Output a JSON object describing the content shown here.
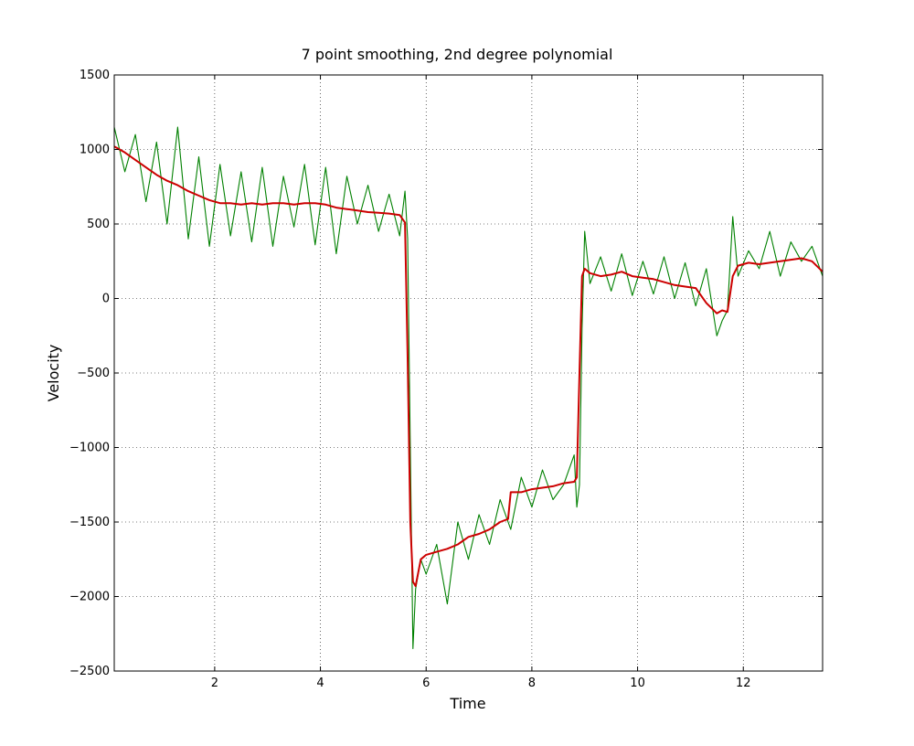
{
  "chart_data": {
    "type": "line",
    "title": "7 point smoothing, 2nd degree polynomial",
    "xlabel": "Time",
    "ylabel": "Velocity",
    "xlim": [
      0.1,
      13.5
    ],
    "ylim": [
      -2500,
      1500
    ],
    "xticks": [
      2,
      4,
      6,
      8,
      10,
      12
    ],
    "xtick_labels": [
      "2",
      "4",
      "6",
      "8",
      "10",
      "12"
    ],
    "yticks": [
      1500,
      1000,
      500,
      0,
      -500,
      -1000,
      -1500,
      -2000,
      -2500
    ],
    "ytick_labels": [
      "1500",
      "1000",
      "500",
      "0",
      "−500",
      "−1000",
      "−1500",
      "−2000",
      "−2500"
    ],
    "grid": true,
    "legend": "none",
    "series": [
      {
        "role": "raw",
        "color": "#008000",
        "x": [
          0.1,
          0.3,
          0.5,
          0.7,
          0.9,
          1.1,
          1.3,
          1.5,
          1.7,
          1.9,
          2.1,
          2.3,
          2.5,
          2.7,
          2.9,
          3.1,
          3.3,
          3.5,
          3.7,
          3.9,
          4.1,
          4.3,
          4.5,
          4.7,
          4.9,
          5.1,
          5.3,
          5.5,
          5.6,
          5.65,
          5.7,
          5.75,
          5.8,
          5.9,
          6.0,
          6.2,
          6.4,
          6.6,
          6.8,
          7.0,
          7.2,
          7.4,
          7.6,
          7.8,
          8.0,
          8.2,
          8.4,
          8.6,
          8.8,
          8.85,
          8.9,
          8.95,
          9.0,
          9.1,
          9.3,
          9.5,
          9.7,
          9.9,
          10.1,
          10.3,
          10.5,
          10.7,
          10.9,
          11.1,
          11.3,
          11.5,
          11.6,
          11.7,
          11.8,
          11.9,
          12.1,
          12.3,
          12.5,
          12.7,
          12.9,
          13.1,
          13.3,
          13.5
        ],
        "y": [
          1150,
          850,
          1100,
          650,
          1050,
          500,
          1150,
          400,
          950,
          350,
          900,
          420,
          850,
          380,
          880,
          350,
          820,
          480,
          900,
          360,
          880,
          300,
          820,
          500,
          760,
          450,
          700,
          420,
          720,
          400,
          -1000,
          -2350,
          -1950,
          -1750,
          -1850,
          -1650,
          -2050,
          -1500,
          -1750,
          -1450,
          -1650,
          -1350,
          -1550,
          -1200,
          -1400,
          -1150,
          -1350,
          -1250,
          -1050,
          -1400,
          -1250,
          -200,
          450,
          100,
          280,
          50,
          300,
          20,
          250,
          30,
          280,
          0,
          240,
          -50,
          200,
          -250,
          -150,
          -80,
          550,
          150,
          320,
          200,
          450,
          150,
          380,
          250,
          350,
          150
        ]
      },
      {
        "role": "smoothed",
        "color": "#cc0000",
        "x": [
          0.1,
          0.3,
          0.5,
          0.7,
          0.9,
          1.1,
          1.3,
          1.5,
          1.7,
          1.9,
          2.1,
          2.3,
          2.5,
          2.7,
          2.9,
          3.1,
          3.3,
          3.5,
          3.7,
          3.9,
          4.1,
          4.3,
          4.5,
          4.7,
          4.9,
          5.1,
          5.3,
          5.5,
          5.6,
          5.65,
          5.7,
          5.75,
          5.8,
          5.9,
          6.0,
          6.2,
          6.4,
          6.6,
          6.8,
          7.0,
          7.2,
          7.4,
          7.55,
          7.6,
          7.8,
          8.0,
          8.2,
          8.4,
          8.6,
          8.8,
          8.85,
          8.9,
          8.95,
          9.0,
          9.1,
          9.3,
          9.5,
          9.7,
          9.9,
          10.1,
          10.3,
          10.5,
          10.7,
          10.9,
          11.1,
          11.3,
          11.5,
          11.6,
          11.7,
          11.8,
          11.9,
          12.1,
          12.3,
          12.5,
          12.7,
          12.9,
          13.1,
          13.3,
          13.5
        ],
        "y": [
          1020,
          980,
          930,
          880,
          830,
          790,
          760,
          720,
          690,
          660,
          640,
          640,
          630,
          640,
          630,
          640,
          640,
          630,
          640,
          640,
          630,
          610,
          600,
          590,
          580,
          575,
          570,
          560,
          510,
          -400,
          -1500,
          -1900,
          -1930,
          -1750,
          -1720,
          -1700,
          -1680,
          -1650,
          -1600,
          -1580,
          -1550,
          -1500,
          -1480,
          -1300,
          -1300,
          -1280,
          -1270,
          -1260,
          -1240,
          -1230,
          -1200,
          -500,
          150,
          200,
          170,
          150,
          160,
          180,
          150,
          140,
          130,
          110,
          90,
          80,
          70,
          -30,
          -100,
          -80,
          -90,
          150,
          220,
          240,
          230,
          240,
          250,
          260,
          270,
          250,
          180
        ]
      }
    ]
  }
}
